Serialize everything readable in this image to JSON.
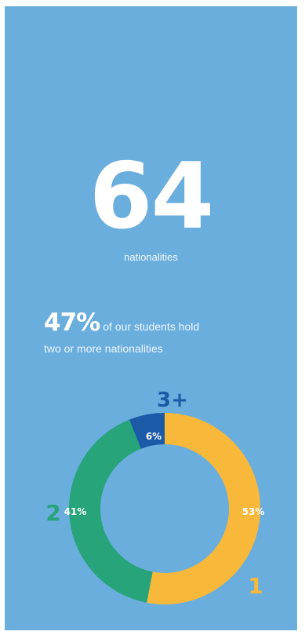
{
  "headline": {
    "number": "64",
    "caption": "nationalities"
  },
  "stat": {
    "percent": "47%",
    "text_line1": "of our students hold",
    "text_line2": "two or more nationalities"
  },
  "colors": {
    "background": "#6aaede",
    "segment_1": "#f8b83a",
    "segment_2": "#27a47a",
    "segment_3plus": "#1a5aa6"
  },
  "chart_data": {
    "type": "pie",
    "variant": "donut",
    "categories": [
      "1",
      "2",
      "3+"
    ],
    "values": [
      53,
      41,
      6
    ],
    "value_labels": [
      "53%",
      "41%",
      "6%"
    ]
  }
}
